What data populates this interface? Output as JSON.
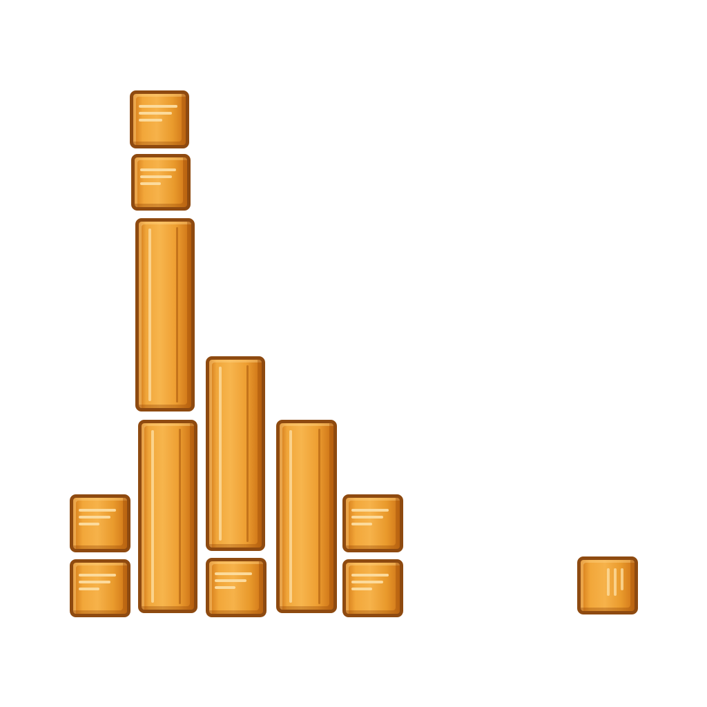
{
  "scene": {
    "blocks": [
      {
        "kind": "cube"
      },
      {
        "kind": "cube"
      },
      {
        "kind": "plank"
      },
      {
        "kind": "plank"
      },
      {
        "kind": "plank"
      },
      {
        "kind": "plank"
      },
      {
        "kind": "cube"
      },
      {
        "kind": "cube"
      },
      {
        "kind": "cube"
      },
      {
        "kind": "cube"
      },
      {
        "kind": "cube"
      },
      {
        "kind": "cube"
      }
    ]
  },
  "colors": {
    "wood_light": "#f6b24a",
    "wood_mid": "#e99a2c",
    "wood_outline": "#8e4a10",
    "background": "#ffffff"
  }
}
